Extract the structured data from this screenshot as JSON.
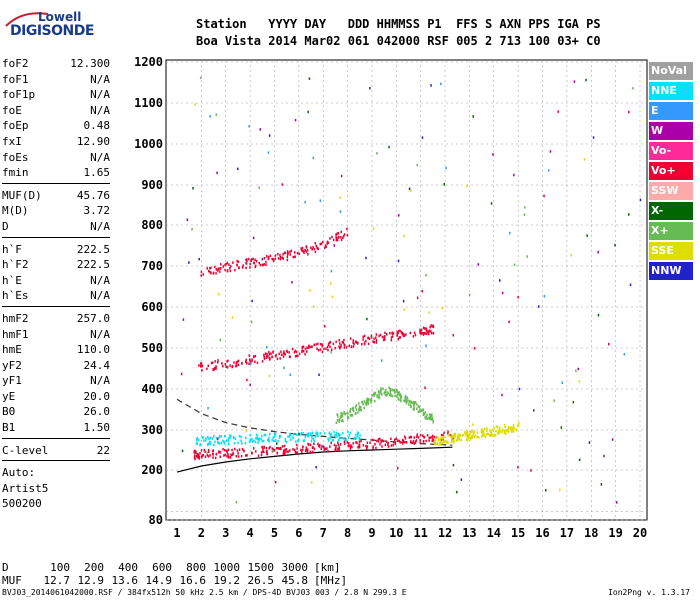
{
  "logo": {
    "top": "Lowell",
    "main": "DIGISONDE"
  },
  "header": {
    "line1": "Station   YYYY DAY   DDD HHMMSS P1  FFS S AXN PPS IGA PS",
    "line2": "Boa Vista 2014 Mar02 061 042000 RSF 005 2 713 100 03+ C0"
  },
  "params": {
    "group1": [
      {
        "label": "foF2",
        "value": "12.300"
      },
      {
        "label": "foF1",
        "value": "N/A"
      },
      {
        "label": "foF1p",
        "value": "N/A"
      },
      {
        "label": "foE",
        "value": "N/A"
      },
      {
        "label": "foEp",
        "value": "0.48"
      },
      {
        "label": "fxI",
        "value": "12.90"
      },
      {
        "label": "foEs",
        "value": "N/A"
      },
      {
        "label": "fmin",
        "value": "1.65"
      }
    ],
    "group2": [
      {
        "label": "MUF(D)",
        "value": "45.76"
      },
      {
        "label": "M(D)",
        "value": "3.72"
      },
      {
        "label": "D",
        "value": "N/A"
      }
    ],
    "group3": [
      {
        "label": "h`F",
        "value": "222.5"
      },
      {
        "label": "h`F2",
        "value": "222.5"
      },
      {
        "label": "h`E",
        "value": "N/A"
      },
      {
        "label": "h`Es",
        "value": "N/A"
      }
    ],
    "group4": [
      {
        "label": "hmF2",
        "value": "257.0"
      },
      {
        "label": "hmF1",
        "value": "N/A"
      },
      {
        "label": "hmE",
        "value": "110.0"
      },
      {
        "label": "yF2",
        "value": "24.4"
      },
      {
        "label": "yF1",
        "value": "N/A"
      },
      {
        "label": "yE",
        "value": "20.0"
      },
      {
        "label": "B0",
        "value": "26.0"
      },
      {
        "label": "B1",
        "value": "1.50"
      }
    ],
    "clevel": {
      "label": "C-level",
      "value": "22"
    },
    "auto": [
      "Auto:",
      "Artist5",
      "500200"
    ]
  },
  "legend": [
    {
      "label": "NoVal",
      "color": "#a0a0a0"
    },
    {
      "label": "NNE",
      "color": "#00e0ff"
    },
    {
      "label": "E",
      "color": "#3399ff"
    },
    {
      "label": "W",
      "color": "#aa00aa"
    },
    {
      "label": "Vo-",
      "color": "#ff2a9a"
    },
    {
      "label": "Vo+",
      "color": "#ee0033"
    },
    {
      "label": "SSW",
      "color": "#ffaaaa"
    },
    {
      "label": "X-",
      "color": "#006600"
    },
    {
      "label": "X+",
      "color": "#66bb55"
    },
    {
      "label": "SSE",
      "color": "#dddd00"
    },
    {
      "label": "NNW",
      "color": "#2222cc"
    }
  ],
  "chart_data": {
    "type": "scatter",
    "xlim": [
      1,
      20
    ],
    "ylim": [
      80,
      1200
    ],
    "xticks": [
      1,
      2,
      3,
      4,
      5,
      6,
      7,
      8,
      9,
      10,
      11,
      12,
      13,
      14,
      15,
      16,
      17,
      18,
      19,
      20
    ],
    "yticks": [
      80,
      100,
      200,
      300,
      400,
      500,
      600,
      700,
      800,
      900,
      1000,
      1100,
      1200
    ],
    "yticklabels": [
      "80",
      "",
      "200",
      "300",
      "400",
      "500",
      "600",
      "700",
      "800",
      "900",
      "1000",
      "1100",
      "1200"
    ],
    "grid": true,
    "traces": [
      {
        "name": "Vo-",
        "color": "#ee0033",
        "x": [
          1.65,
          2,
          3,
          4,
          5,
          6,
          7,
          8,
          9,
          10,
          11,
          12.3
        ],
        "y": [
          240,
          242,
          245,
          248,
          252,
          256,
          260,
          264,
          268,
          275,
          282,
          290
        ]
      },
      {
        "name": "NNE",
        "color": "#00e0ff",
        "x": [
          1.7,
          2.5,
          3.5,
          4.5,
          5.5,
          6.5,
          7.5,
          8.5
        ],
        "y": [
          275,
          277,
          280,
          282,
          284,
          286,
          288,
          290
        ]
      },
      {
        "name": "SSE",
        "color": "#dddd00",
        "x": [
          11.5,
          12,
          12.5,
          13,
          13.5,
          14,
          14.5,
          15
        ],
        "y": [
          275,
          280,
          285,
          290,
          295,
          300,
          305,
          310
        ]
      },
      {
        "name": "Vo+",
        "color": "#ee0033",
        "x": [
          1.8,
          3,
          4,
          5,
          6,
          7,
          8,
          9,
          10,
          11,
          11.5
        ],
        "y": [
          455,
          465,
          475,
          485,
          495,
          505,
          515,
          525,
          535,
          545,
          550
        ]
      },
      {
        "name": "Vo-",
        "color": "#ee0033",
        "x": [
          1.9,
          3,
          4,
          5,
          6,
          7,
          8
        ],
        "y": [
          685,
          700,
          710,
          720,
          735,
          755,
          785
        ]
      },
      {
        "name": "X+",
        "color": "#66bb55",
        "x": [
          7.5,
          8,
          8.5,
          9,
          9.5,
          10,
          10.5,
          11,
          11.5
        ],
        "y": [
          330,
          340,
          360,
          380,
          400,
          390,
          370,
          350,
          330
        ]
      }
    ],
    "profile": {
      "x": [
        1,
        2,
        3,
        4,
        5,
        6,
        7,
        8,
        9,
        10,
        11,
        12.3
      ],
      "y": [
        195,
        210,
        220,
        228,
        234,
        240,
        245,
        248,
        250,
        252,
        254,
        257
      ]
    },
    "dashed": {
      "x": [
        1,
        2,
        3,
        4,
        5,
        6,
        7,
        8,
        9,
        10,
        11,
        12.3
      ],
      "y": [
        375,
        340,
        318,
        305,
        296,
        289,
        284,
        279,
        275,
        270,
        266,
        262
      ]
    },
    "distance_table": {
      "d_label": "D",
      "d_values": [
        "100",
        "200",
        "400",
        "600",
        "800",
        "1000",
        "1500",
        "3000"
      ],
      "d_unit": "[km]",
      "muf_label": "MUF",
      "muf_values": [
        "12.7",
        "12.9",
        "13.6",
        "14.9",
        "16.6",
        "19.2",
        "26.5",
        "45.8"
      ],
      "muf_unit": "[MHz]"
    }
  },
  "footer": {
    "file": "BVJ03_2014061042000.RSF / 384fx512h 50 kHz 2.5 km / DPS-4D BVJ03 003 / 2.8 N 299.3 E",
    "version": "Ion2Png v. 1.3.17"
  }
}
